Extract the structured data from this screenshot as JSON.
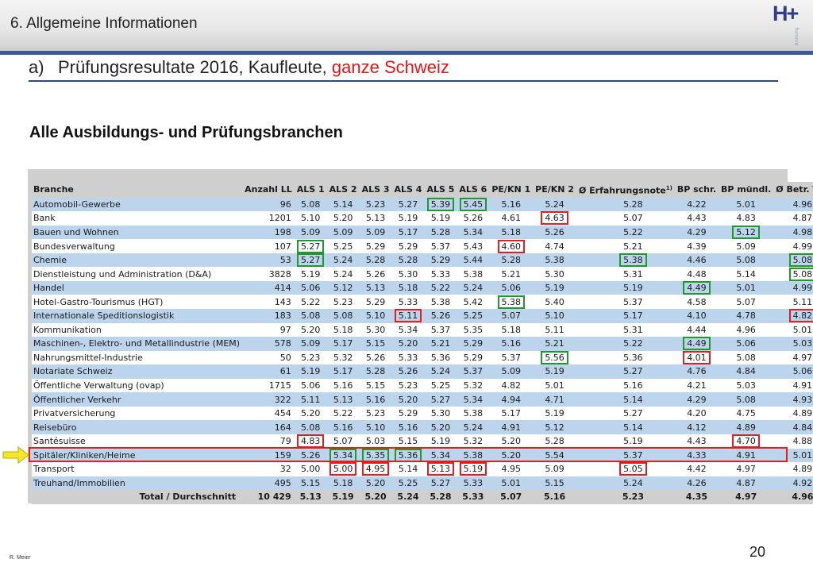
{
  "header": {
    "section_title": "6. Allgemeine Informationen",
    "logo_mark": "H+",
    "logo_sub": "Bildung"
  },
  "subtitle": {
    "letter": "a)",
    "text": "Prüfungsresultate 2016, Kaufleute,",
    "highlight": "ganze Schweiz"
  },
  "heading": "Alle Ausbildungs- und Prüfungsbranchen",
  "table": {
    "columns": [
      "Branche",
      "Anzahl LL",
      "ALS 1",
      "ALS 2",
      "ALS 3",
      "ALS 4",
      "ALS 5",
      "ALS 6",
      "PE/KN 1",
      "PE/KN 2",
      "Ø Erfahrungsnote",
      "BP schr.",
      "BP mündl.",
      "Ø Betr. Teil"
    ],
    "erf_footnote": "1)",
    "rows": [
      [
        "Automobil-Gewerbe",
        "96",
        "5.08",
        "5.14",
        "5.23",
        "5.27",
        "5.39",
        "5.45",
        "5.16",
        "5.24",
        "5.28",
        "4.22",
        "5.01",
        "4.96"
      ],
      [
        "Bank",
        "1201",
        "5.10",
        "5.20",
        "5.13",
        "5.19",
        "5.19",
        "5.26",
        "4.61",
        "4.63",
        "5.07",
        "4.43",
        "4.83",
        "4.87"
      ],
      [
        "Bauen und Wohnen",
        "198",
        "5.09",
        "5.09",
        "5.09",
        "5.17",
        "5.28",
        "5.34",
        "5.18",
        "5.26",
        "5.22",
        "4.29",
        "5.12",
        "4.98"
      ],
      [
        "Bundesverwaltung",
        "107",
        "5.27",
        "5.25",
        "5.29",
        "5.29",
        "5.37",
        "5.43",
        "4.60",
        "4.74",
        "5.21",
        "4.39",
        "5.09",
        "4.99"
      ],
      [
        "Chemie",
        "53",
        "5.27",
        "5.24",
        "5.28",
        "5.28",
        "5.29",
        "5.44",
        "5.28",
        "5.38",
        "5.38",
        "4.46",
        "5.08",
        "5.08"
      ],
      [
        "Dienstleistung und Administration (D&A)",
        "3828",
        "5.19",
        "5.24",
        "5.26",
        "5.30",
        "5.33",
        "5.38",
        "5.21",
        "5.30",
        "5.31",
        "4.48",
        "5.14",
        "5.08"
      ],
      [
        "Handel",
        "414",
        "5.06",
        "5.12",
        "5.13",
        "5.18",
        "5.22",
        "5.24",
        "5.06",
        "5.19",
        "5.19",
        "4.49",
        "5.01",
        "4.99"
      ],
      [
        "Hotel-Gastro-Tourismus (HGT)",
        "143",
        "5.22",
        "5.23",
        "5.29",
        "5.33",
        "5.38",
        "5.42",
        "5.38",
        "5.40",
        "5.37",
        "4.58",
        "5.07",
        "5.11"
      ],
      [
        "Internationale Speditionslogistik",
        "183",
        "5.08",
        "5.08",
        "5.10",
        "5.11",
        "5.26",
        "5.25",
        "5.07",
        "5.10",
        "5.17",
        "4.10",
        "4.78",
        "4.82"
      ],
      [
        "Kommunikation",
        "97",
        "5.20",
        "5.18",
        "5.30",
        "5.34",
        "5.37",
        "5.35",
        "5.18",
        "5.11",
        "5.31",
        "4.44",
        "4.96",
        "5.01"
      ],
      [
        "Maschinen-, Elektro- und Metallindustrie (MEM)",
        "578",
        "5.09",
        "5.17",
        "5.15",
        "5.20",
        "5.21",
        "5.29",
        "5.16",
        "5.21",
        "5.22",
        "4.49",
        "5.06",
        "5.03"
      ],
      [
        "Nahrungsmittel-Industrie",
        "50",
        "5.23",
        "5.32",
        "5.26",
        "5.33",
        "5.36",
        "5.29",
        "5.37",
        "5.56",
        "5.36",
        "4.01",
        "5.08",
        "4.97"
      ],
      [
        "Notariate Schweiz",
        "61",
        "5.19",
        "5.17",
        "5.28",
        "5.26",
        "5.24",
        "5.37",
        "5.09",
        "5.19",
        "5.27",
        "4.76",
        "4.84",
        "5.06"
      ],
      [
        "Öffentliche Verwaltung (ovap)",
        "1715",
        "5.06",
        "5.16",
        "5.15",
        "5.23",
        "5.25",
        "5.32",
        "4.82",
        "5.01",
        "5.16",
        "4.21",
        "5.03",
        "4.91"
      ],
      [
        "Öffentlicher Verkehr",
        "322",
        "5.11",
        "5.13",
        "5.16",
        "5.20",
        "5.27",
        "5.34",
        "4.94",
        "4.71",
        "5.14",
        "4.29",
        "5.08",
        "4.93"
      ],
      [
        "Privatversicherung",
        "454",
        "5.20",
        "5.22",
        "5.23",
        "5.29",
        "5.30",
        "5.38",
        "5.17",
        "5.19",
        "5.27",
        "4.20",
        "4.75",
        "4.89"
      ],
      [
        "Reisebüro",
        "164",
        "5.08",
        "5.16",
        "5.10",
        "5.16",
        "5.20",
        "5.24",
        "4.91",
        "5.12",
        "5.14",
        "4.12",
        "4.89",
        "4.84"
      ],
      [
        "Santésuisse",
        "79",
        "4.83",
        "5.07",
        "5.03",
        "5.15",
        "5.19",
        "5.32",
        "5.20",
        "5.28",
        "5.19",
        "4.43",
        "4.70",
        "4.88"
      ],
      [
        "Spitäler/Kliniken/Heime",
        "159",
        "5.26",
        "5.34",
        "5.35",
        "5.36",
        "5.34",
        "5.38",
        "5.20",
        "5.54",
        "5.37",
        "4.33",
        "4.91",
        "5.01"
      ],
      [
        "Transport",
        "32",
        "5.00",
        "5.00",
        "4.95",
        "5.14",
        "5.13",
        "5.19",
        "4.95",
        "5.09",
        "5.05",
        "4.42",
        "4.97",
        "4.89"
      ],
      [
        "Treuhand/Immobilien",
        "495",
        "5.15",
        "5.18",
        "5.20",
        "5.25",
        "5.27",
        "5.33",
        "5.01",
        "5.15",
        "5.24",
        "4.26",
        "4.87",
        "4.92"
      ]
    ],
    "total": [
      "Total / Durchschnitt",
      "10 429",
      "5.13",
      "5.19",
      "5.20",
      "5.24",
      "5.28",
      "5.33",
      "5.07",
      "5.16",
      "5.23",
      "4.35",
      "4.97",
      "4.96"
    ],
    "highlights": [
      {
        "row": 0,
        "col": 6,
        "color": "green"
      },
      {
        "row": 0,
        "col": 7,
        "color": "green"
      },
      {
        "row": 1,
        "col": 9,
        "color": "red"
      },
      {
        "row": 2,
        "col": 12,
        "color": "green"
      },
      {
        "row": 3,
        "col": 2,
        "color": "green"
      },
      {
        "row": 3,
        "col": 8,
        "color": "red"
      },
      {
        "row": 4,
        "col": 2,
        "color": "green"
      },
      {
        "row": 4,
        "col": 10,
        "color": "green"
      },
      {
        "row": 4,
        "col": 13,
        "color": "green"
      },
      {
        "row": 5,
        "col": 13,
        "color": "green"
      },
      {
        "row": 6,
        "col": 11,
        "color": "green"
      },
      {
        "row": 7,
        "col": 8,
        "color": "green"
      },
      {
        "row": 8,
        "col": 5,
        "color": "red"
      },
      {
        "row": 8,
        "col": 13,
        "color": "red"
      },
      {
        "row": 10,
        "col": 11,
        "color": "green"
      },
      {
        "row": 11,
        "col": 9,
        "color": "green"
      },
      {
        "row": 11,
        "col": 11,
        "color": "red"
      },
      {
        "row": 17,
        "col": 2,
        "color": "red"
      },
      {
        "row": 17,
        "col": 12,
        "color": "red"
      },
      {
        "row": 18,
        "col": 3,
        "color": "green"
      },
      {
        "row": 18,
        "col": 4,
        "color": "green"
      },
      {
        "row": 18,
        "col": 5,
        "color": "green"
      },
      {
        "row": 19,
        "col": 3,
        "color": "red"
      },
      {
        "row": 19,
        "col": 4,
        "color": "red"
      },
      {
        "row": 19,
        "col": 6,
        "color": "red"
      },
      {
        "row": 19,
        "col": 7,
        "color": "red"
      },
      {
        "row": 19,
        "col": 10,
        "color": "red"
      }
    ],
    "highlighted_row": "Spitäler/Kliniken/Heime"
  },
  "colors": {
    "highlight_green": "#1e9a2a",
    "highlight_red": "#e02020",
    "arrow_yellow": "#f5e62a",
    "row_blue": "#bcd4ec",
    "accent_blue": "#3c5a9a"
  },
  "footer": {
    "page_number": "20",
    "author": "R. Meier"
  }
}
